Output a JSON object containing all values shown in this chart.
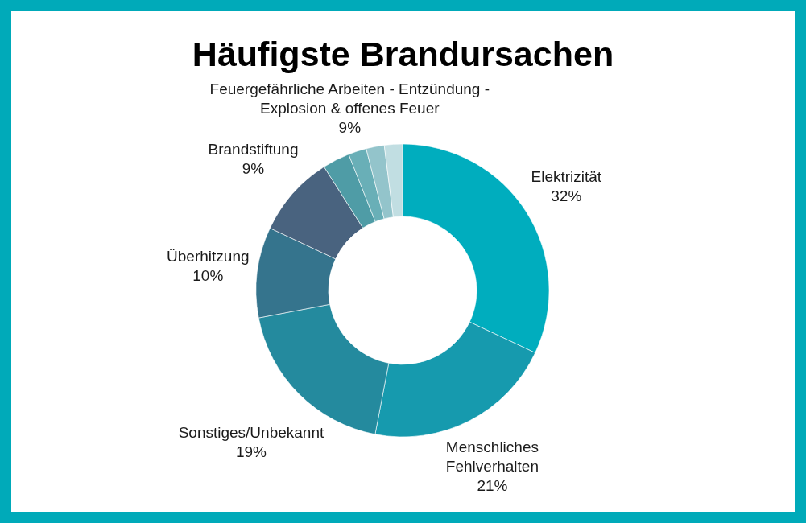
{
  "chart_data": {
    "type": "donut",
    "title": "Häufigste Brandursachen",
    "categories": [
      "Elektrizität",
      "Menschliches Fehlverhalten",
      "Sonstiges/Unbekannt",
      "Überhitzung",
      "Brandstiftung",
      null,
      null,
      null,
      null
    ],
    "values": [
      32,
      21,
      19,
      10,
      9,
      3,
      2,
      2,
      2
    ],
    "colors": [
      "#00adbe",
      "#169aae",
      "#248a9e",
      "#35748d",
      "#49637f",
      "#4f9ca6",
      "#69afb7",
      "#93c4cb",
      "#c1dee2"
    ],
    "value_labels": [
      "32%",
      "21%",
      "19%",
      "10%",
      "9%",
      null,
      null,
      null,
      null
    ],
    "annotations": [
      "Feuergefährliche Arbeiten - Entzündung - Explosion & offenes Feuer",
      "9%"
    ]
  }
}
